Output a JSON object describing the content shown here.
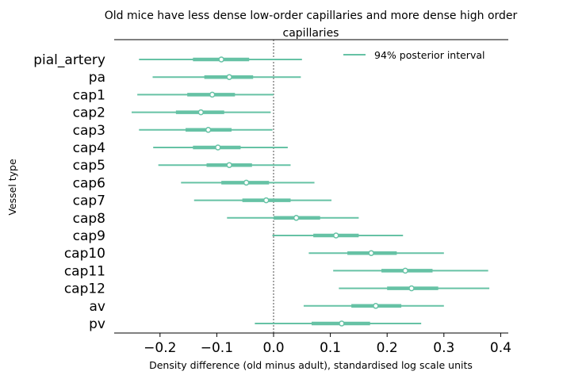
{
  "chart_data": {
    "type": "forest",
    "title": "Old mice have less dense low-order capillaries and more dense high order capillaries",
    "title_lines": [
      "Old mice have less dense low-order capillaries and more dense high order",
      "capillaries"
    ],
    "xlabel": "Density difference (old minus adult), standardised log scale units",
    "ylabel": "Vessel type",
    "xlim": [
      -0.28,
      0.41
    ],
    "xticks": [
      -0.2,
      -0.1,
      0.0,
      0.1,
      0.2,
      0.3,
      0.4
    ],
    "xtick_labels": [
      "−0.2",
      "−0.1",
      "0.0",
      "0.1",
      "0.2",
      "0.3",
      "0.4"
    ],
    "reference_line_x": 0.0,
    "legend": {
      "label": "94% posterior interval",
      "placement": "top-right"
    },
    "series_color": "#66c2a5",
    "categories": [
      "pial_artery",
      "pa",
      "cap1",
      "cap2",
      "cap3",
      "cap4",
      "cap5",
      "cap6",
      "cap7",
      "cap8",
      "cap9",
      "cap10",
      "cap11",
      "cap12",
      "av",
      "pv"
    ],
    "points": [
      {
        "label": "pial_artery",
        "median": -0.092,
        "q25": -0.142,
        "q75": -0.043,
        "hdi_low": -0.237,
        "hdi_high": 0.05
      },
      {
        "label": "pa",
        "median": -0.078,
        "q25": -0.122,
        "q75": -0.036,
        "hdi_low": -0.213,
        "hdi_high": 0.048
      },
      {
        "label": "cap1",
        "median": -0.108,
        "q25": -0.152,
        "q75": -0.068,
        "hdi_low": -0.24,
        "hdi_high": 0.0
      },
      {
        "label": "cap2",
        "median": -0.128,
        "q25": -0.172,
        "q75": -0.087,
        "hdi_low": -0.25,
        "hdi_high": -0.005
      },
      {
        "label": "cap3",
        "median": -0.115,
        "q25": -0.155,
        "q75": -0.074,
        "hdi_low": -0.237,
        "hdi_high": -0.002
      },
      {
        "label": "cap4",
        "median": -0.098,
        "q25": -0.142,
        "q75": -0.058,
        "hdi_low": -0.212,
        "hdi_high": 0.025
      },
      {
        "label": "cap5",
        "median": -0.078,
        "q25": -0.118,
        "q75": -0.038,
        "hdi_low": -0.203,
        "hdi_high": 0.03
      },
      {
        "label": "cap6",
        "median": -0.048,
        "q25": -0.092,
        "q75": -0.008,
        "hdi_low": -0.163,
        "hdi_high": 0.072
      },
      {
        "label": "cap7",
        "median": -0.013,
        "q25": -0.055,
        "q75": 0.03,
        "hdi_low": -0.14,
        "hdi_high": 0.102
      },
      {
        "label": "cap8",
        "median": 0.04,
        "q25": 0.0,
        "q75": 0.082,
        "hdi_low": -0.082,
        "hdi_high": 0.15
      },
      {
        "label": "cap9",
        "median": 0.11,
        "q25": 0.07,
        "q75": 0.15,
        "hdi_low": -0.002,
        "hdi_high": 0.228
      },
      {
        "label": "cap10",
        "median": 0.172,
        "q25": 0.13,
        "q75": 0.217,
        "hdi_low": 0.062,
        "hdi_high": 0.3
      },
      {
        "label": "cap11",
        "median": 0.232,
        "q25": 0.19,
        "q75": 0.28,
        "hdi_low": 0.105,
        "hdi_high": 0.378
      },
      {
        "label": "cap12",
        "median": 0.243,
        "q25": 0.2,
        "q75": 0.29,
        "hdi_low": 0.115,
        "hdi_high": 0.38
      },
      {
        "label": "av",
        "median": 0.18,
        "q25": 0.137,
        "q75": 0.225,
        "hdi_low": 0.053,
        "hdi_high": 0.3
      },
      {
        "label": "pv",
        "median": 0.12,
        "q25": 0.067,
        "q75": 0.17,
        "hdi_low": -0.033,
        "hdi_high": 0.26
      }
    ]
  }
}
